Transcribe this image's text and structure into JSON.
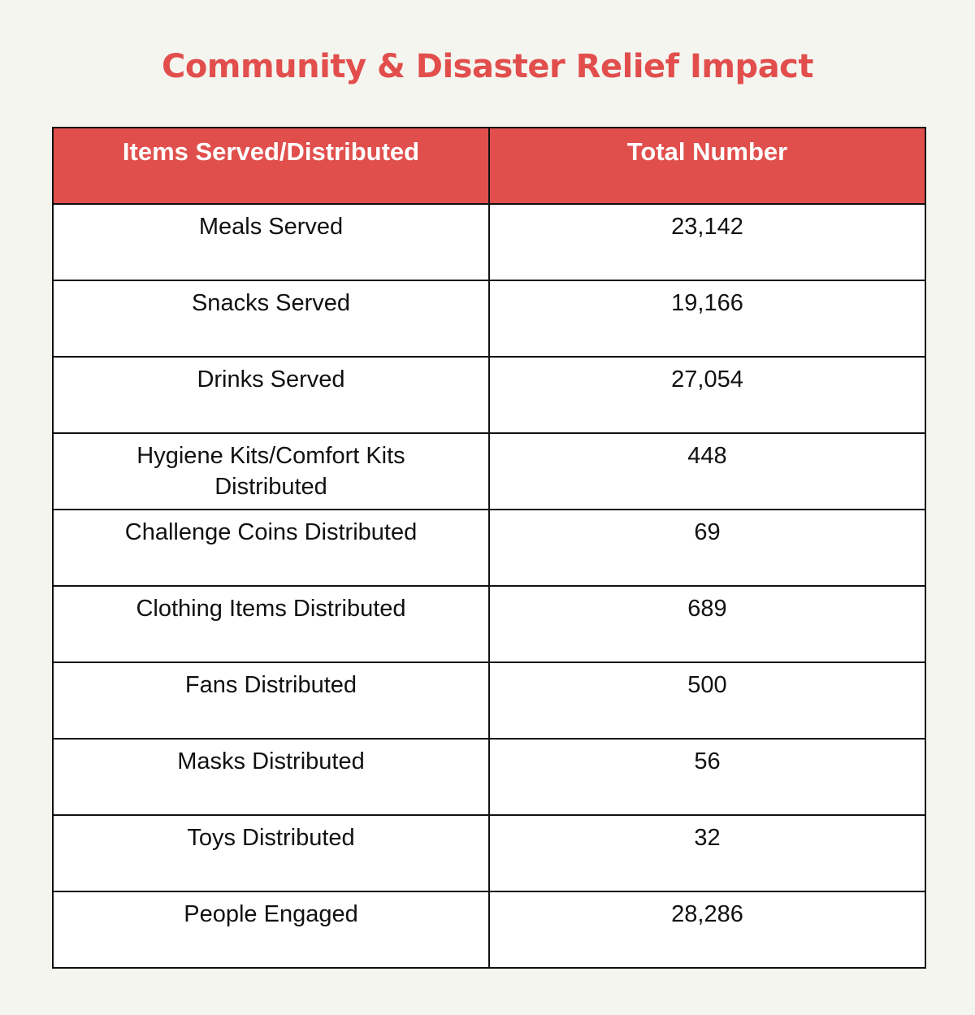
{
  "title": "Community & Disaster Relief Impact",
  "table": {
    "headers": [
      "Items Served/Distributed",
      "Total Number"
    ],
    "rows": [
      {
        "item": "Meals Served",
        "total": "23,142"
      },
      {
        "item": "Snacks Served",
        "total": "19,166"
      },
      {
        "item": "Drinks Served",
        "total": "27,054"
      },
      {
        "item": "Hygiene Kits/Comfort Kits Distributed",
        "total": "448"
      },
      {
        "item": "Challenge Coins Distributed",
        "total": "69"
      },
      {
        "item": "Clothing Items Distributed",
        "total": "689"
      },
      {
        "item": "Fans Distributed",
        "total": "500"
      },
      {
        "item": "Masks Distributed",
        "total": "56"
      },
      {
        "item": "Toys Distributed",
        "total": "32"
      },
      {
        "item": "People Engaged",
        "total": "28,286"
      }
    ]
  },
  "colors": {
    "accent": "#e14e4c",
    "header_bg": "#e04f4c",
    "background": "#f5f5f0"
  }
}
